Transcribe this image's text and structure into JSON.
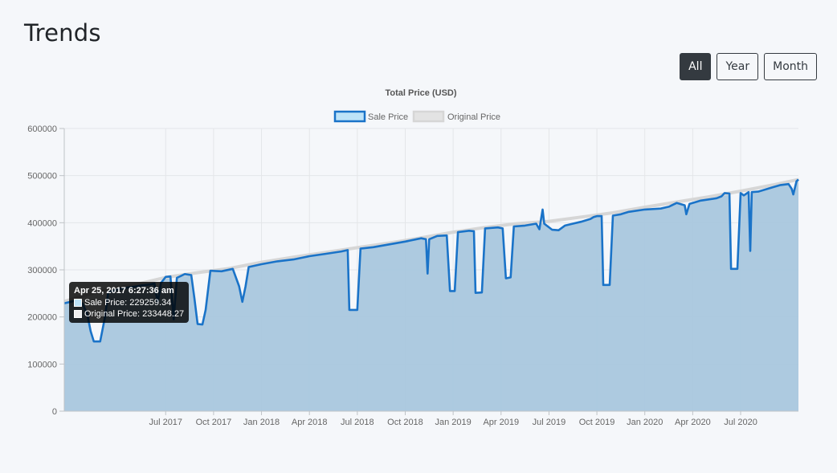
{
  "page": {
    "title": "Trends"
  },
  "range_buttons": [
    {
      "label": "All",
      "active": true
    },
    {
      "label": "Year",
      "active": false
    },
    {
      "label": "Month",
      "active": false
    }
  ],
  "tooltip": {
    "title": "Apr 25, 2017 6:27:36 am",
    "rows": [
      {
        "label": "Sale Price: 229259.34",
        "color": "#bde3f8"
      },
      {
        "label": "Original Price: 233448.27",
        "color": "#f0f0f0"
      }
    ]
  },
  "colors": {
    "sale_line": "#1a73c8",
    "sale_fill": "#a9c7de",
    "original_line": "#d6d6d6",
    "grid": "#e4e6e9"
  },
  "chart_data": {
    "type": "area",
    "title": "Total Price (USD)",
    "xlabel": "",
    "ylabel": "",
    "ylim": [
      0,
      600000
    ],
    "yticks": [
      "0",
      "100000",
      "200000",
      "300000",
      "400000",
      "500000",
      "600000"
    ],
    "x_range": [
      -4.35,
      41.62
    ],
    "x_tick_values": [
      2,
      5,
      8,
      11,
      14,
      17,
      20,
      23,
      26,
      29,
      32,
      35,
      38
    ],
    "x_tick_labels": [
      "Jul 2017",
      "Oct 2017",
      "Jan 2018",
      "Apr 2018",
      "Jul 2018",
      "Oct 2018",
      "Jan 2019",
      "Apr 2019",
      "Jul 2019",
      "Oct 2019",
      "Jan 2020",
      "Apr 2020",
      "Jul 2020"
    ],
    "legend": {
      "position": "top-center",
      "entries": [
        "Sale Price",
        "Original Price"
      ]
    },
    "series": [
      {
        "name": "Sale Price",
        "points": [
          [
            -4.35,
            229000
          ],
          [
            -3.6,
            235000
          ],
          [
            -3.2,
            228000
          ],
          [
            -2.9,
            205000
          ],
          [
            -2.7,
            170000
          ],
          [
            -2.5,
            148000
          ],
          [
            -2.1,
            148000
          ],
          [
            -1.8,
            200000
          ],
          [
            -1.6,
            252000
          ],
          [
            -1,
            259000
          ],
          [
            -0.5,
            262000
          ],
          [
            0,
            264000
          ],
          [
            0.5,
            267000
          ],
          [
            1,
            269000
          ],
          [
            1.3,
            271000
          ],
          [
            1.5,
            230000
          ],
          [
            1.7,
            272000
          ],
          [
            2,
            285000
          ],
          [
            2.3,
            286000
          ],
          [
            2.5,
            195000
          ],
          [
            2.7,
            283000
          ],
          [
            3.2,
            291000
          ],
          [
            3.6,
            289000
          ],
          [
            3.8,
            240000
          ],
          [
            4,
            185000
          ],
          [
            4.3,
            184000
          ],
          [
            4.5,
            215000
          ],
          [
            4.8,
            298000
          ],
          [
            5.5,
            297000
          ],
          [
            6.2,
            302000
          ],
          [
            6.6,
            265000
          ],
          [
            6.8,
            232000
          ],
          [
            7,
            265000
          ],
          [
            7.2,
            306000
          ],
          [
            8,
            312000
          ],
          [
            9,
            318000
          ],
          [
            10,
            322000
          ],
          [
            11,
            329000
          ],
          [
            12,
            334000
          ],
          [
            13,
            339000
          ],
          [
            13.4,
            342000
          ],
          [
            13.5,
            215000
          ],
          [
            14,
            215000
          ],
          [
            14.2,
            345000
          ],
          [
            15,
            348000
          ],
          [
            16,
            354000
          ],
          [
            17,
            360000
          ],
          [
            18,
            367000
          ],
          [
            18.3,
            365000
          ],
          [
            18.4,
            292000
          ],
          [
            18.5,
            365000
          ],
          [
            19,
            372000
          ],
          [
            19.6,
            373000
          ],
          [
            19.8,
            255000
          ],
          [
            20.1,
            255000
          ],
          [
            20.3,
            380000
          ],
          [
            21,
            383000
          ],
          [
            21.3,
            382000
          ],
          [
            21.4,
            251000
          ],
          [
            21.8,
            252000
          ],
          [
            22,
            388000
          ],
          [
            22.8,
            390000
          ],
          [
            23.1,
            388000
          ],
          [
            23.3,
            282000
          ],
          [
            23.6,
            284000
          ],
          [
            23.8,
            392000
          ],
          [
            24.5,
            394000
          ],
          [
            25.2,
            398000
          ],
          [
            25.4,
            386000
          ],
          [
            25.6,
            428000
          ],
          [
            25.7,
            398000
          ],
          [
            26.2,
            385000
          ],
          [
            26.6,
            384000
          ],
          [
            27,
            394000
          ],
          [
            27.5,
            398000
          ],
          [
            28,
            402000
          ],
          [
            28.6,
            408000
          ],
          [
            28.8,
            412000
          ],
          [
            29,
            414000
          ],
          [
            29.3,
            414000
          ],
          [
            29.4,
            268000
          ],
          [
            29.8,
            268000
          ],
          [
            30,
            415000
          ],
          [
            30.5,
            418000
          ],
          [
            31,
            423000
          ],
          [
            32,
            428000
          ],
          [
            33,
            430000
          ],
          [
            33.5,
            434000
          ],
          [
            34,
            442000
          ],
          [
            34.5,
            437000
          ],
          [
            34.6,
            418000
          ],
          [
            34.8,
            440000
          ],
          [
            35.5,
            447000
          ],
          [
            36.5,
            452000
          ],
          [
            36.8,
            456000
          ],
          [
            37,
            463000
          ],
          [
            37.3,
            462000
          ],
          [
            37.4,
            302000
          ],
          [
            37.8,
            302000
          ],
          [
            38,
            463000
          ],
          [
            38.2,
            458000
          ],
          [
            38.5,
            465000
          ],
          [
            38.6,
            340000
          ],
          [
            38.7,
            465000
          ],
          [
            39.1,
            466000
          ],
          [
            39.5,
            470000
          ],
          [
            40,
            475000
          ],
          [
            40.5,
            480000
          ],
          [
            41,
            482000
          ],
          [
            41.2,
            472000
          ],
          [
            41.3,
            460000
          ],
          [
            41.5,
            488000
          ],
          [
            41.62,
            492000
          ]
        ]
      },
      {
        "name": "Original Price",
        "points": [
          [
            -4.35,
            233000
          ],
          [
            -2,
            256000
          ],
          [
            0,
            268000
          ],
          [
            2,
            284000
          ],
          [
            4,
            294000
          ],
          [
            6,
            303000
          ],
          [
            8,
            316000
          ],
          [
            10,
            327000
          ],
          [
            12,
            337000
          ],
          [
            14,
            347000
          ],
          [
            16,
            357000
          ],
          [
            18,
            368000
          ],
          [
            20,
            380000
          ],
          [
            22,
            390000
          ],
          [
            24,
            398000
          ],
          [
            26,
            403000
          ],
          [
            28,
            412000
          ],
          [
            30,
            421000
          ],
          [
            32,
            433000
          ],
          [
            34,
            444000
          ],
          [
            36,
            455000
          ],
          [
            38,
            467000
          ],
          [
            40,
            480000
          ],
          [
            41.62,
            492000
          ]
        ]
      }
    ]
  }
}
